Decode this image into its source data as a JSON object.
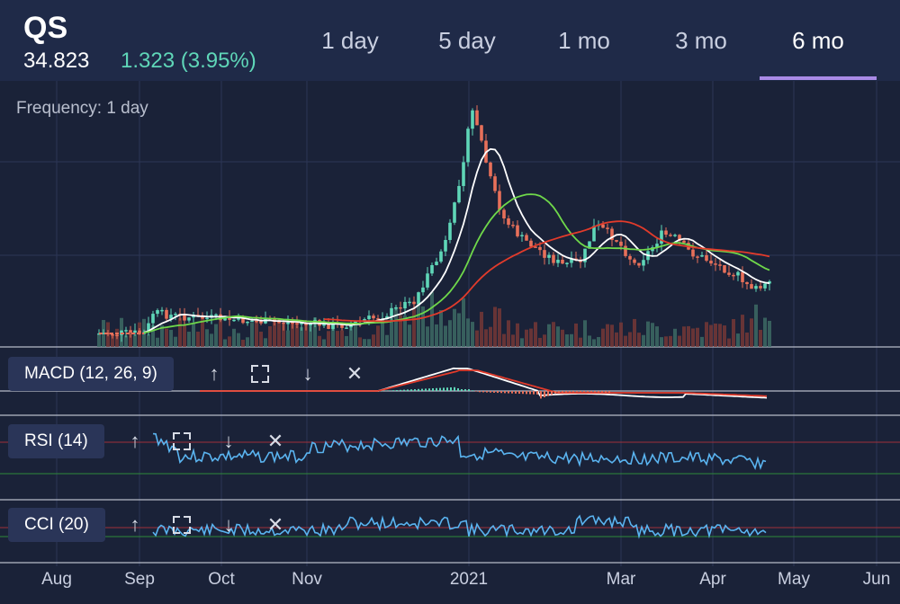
{
  "header": {
    "ticker": "QS",
    "price": "34.823",
    "change": "1.323 (3.95%)",
    "tabs": [
      {
        "label": "1 day"
      },
      {
        "label": "5 day"
      },
      {
        "label": "1 mo"
      },
      {
        "label": "3 mo"
      },
      {
        "label": "6 mo"
      }
    ],
    "active_tab": "6 mo"
  },
  "chart": {
    "frequency": "Frequency: 1 day",
    "x_axis_labels": [
      "Aug",
      "Sep",
      "Oct",
      "Nov",
      "2021",
      "Mar",
      "Apr",
      "May",
      "Jun"
    ]
  },
  "indicators": {
    "macd": {
      "label": "MACD (12, 26, 9)"
    },
    "rsi": {
      "label": "RSI (14)"
    },
    "cci": {
      "label": "CCI (20)"
    }
  },
  "colors": {
    "up": "#5fd6b8",
    "down": "#e8705a",
    "accent": "#a98ae6",
    "ma_short": "#ffffff",
    "ma_mid": "#6fd84a",
    "ma_long": "#e23b2b",
    "rsi_line": "#5ab4f0"
  }
}
